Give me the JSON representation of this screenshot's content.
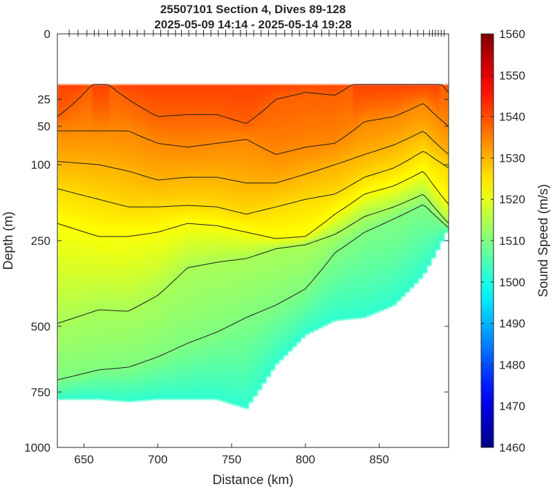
{
  "chart_data": {
    "type": "heatmap",
    "title": "25507101 Section 4, Dives 89-128",
    "subtitle": "2025-05-09 14:14 - 2025-05-14 19:28",
    "xlabel": "Distance (km)",
    "ylabel": "Depth (m)",
    "xlim": [
      632,
      897
    ],
    "ylim": [
      0,
      1000
    ],
    "y_scale": "sqrt",
    "x_ticks": [
      650,
      700,
      750,
      800,
      850
    ],
    "x_tick_labels": [
      "650",
      "700",
      "750",
      "800",
      "850"
    ],
    "y_ticks": [
      0,
      25,
      50,
      100,
      250,
      500,
      750,
      1000
    ],
    "y_tick_labels": [
      "0",
      "25",
      "50",
      "100",
      "250",
      "500",
      "750",
      "1000"
    ],
    "colorbar": {
      "label": "Sound Speed (m/s)",
      "min": 1460,
      "max": 1560,
      "ticks": [
        1460,
        1470,
        1480,
        1490,
        1500,
        1510,
        1520,
        1530,
        1540,
        1550,
        1560
      ],
      "tick_labels": [
        "1460",
        "1470",
        "1480",
        "1490",
        "1500",
        "1510",
        "1520",
        "1530",
        "1540",
        "1550",
        "1560"
      ],
      "colormap": "jet"
    },
    "dive_positions": [
      640,
      646,
      652,
      657,
      660,
      666,
      671,
      676,
      681,
      686,
      691,
      697,
      702,
      707,
      712,
      716,
      721,
      726,
      731,
      736,
      741,
      746,
      751,
      756,
      760,
      765,
      770,
      775,
      780,
      786,
      791,
      796,
      801,
      806,
      811,
      816,
      821,
      826,
      831,
      836,
      841,
      846,
      851,
      856,
      861,
      866,
      871,
      876,
      880,
      884,
      886,
      888,
      890,
      892,
      894
    ],
    "profiles": [
      {
        "x": 632,
        "bottom": 780,
        "iso": {
          "1538": 40,
          "1534": 55,
          "1530": 95,
          "1526": 140,
          "1522": 210,
          "1514": 490,
          "1510": 700
        }
      },
      {
        "x": 660,
        "bottom": 780,
        "iso": {
          "1538": 10,
          "1534": 55,
          "1530": 100,
          "1526": 160,
          "1522": 240,
          "1514": 445,
          "1510": 660
        }
      },
      {
        "x": 680,
        "bottom": 790,
        "iso": {
          "1538": 25,
          "1534": 55,
          "1530": 110,
          "1526": 175,
          "1522": 240,
          "1514": 450,
          "1510": 650
        }
      },
      {
        "x": 700,
        "bottom": 780,
        "iso": {
          "1538": 40,
          "1534": 70,
          "1530": 125,
          "1526": 175,
          "1522": 230,
          "1514": 400,
          "1510": 610
        }
      },
      {
        "x": 720,
        "bottom": 780,
        "iso": {
          "1538": 38,
          "1534": 75,
          "1530": 120,
          "1526": 172,
          "1522": 210,
          "1514": 320,
          "1510": 560
        }
      },
      {
        "x": 740,
        "bottom": 780,
        "iso": {
          "1538": 38,
          "1534": 70,
          "1530": 120,
          "1526": 175,
          "1522": 215,
          "1514": 305,
          "1510": 520
        }
      },
      {
        "x": 760,
        "bottom": 820,
        "iso": {
          "1538": 47,
          "1534": 65,
          "1530": 130,
          "1526": 190,
          "1522": 230,
          "1514": 295,
          "1510": 470
        }
      },
      {
        "x": 780,
        "bottom": 640,
        "iso": {
          "1538": 25,
          "1534": 85,
          "1530": 130,
          "1526": 175,
          "1522": 245,
          "1514": 270,
          "1510": 430
        }
      },
      {
        "x": 800,
        "bottom": 530,
        "iso": {
          "1538": 20,
          "1534": 75,
          "1530": 115,
          "1526": 160,
          "1522": 240,
          "1514": 260,
          "1510": 380
        }
      },
      {
        "x": 820,
        "bottom": 480,
        "iso": {
          "1538": 22,
          "1534": 70,
          "1530": 100,
          "1526": 150,
          "1522": 190,
          "1514": 235,
          "1510": 280
        }
      },
      {
        "x": 840,
        "bottom": 470,
        "iso": {
          "1538": 10,
          "1534": 45,
          "1530": 85,
          "1526": 120,
          "1522": 150,
          "1514": 195,
          "1510": 230
        }
      },
      {
        "x": 860,
        "bottom": 430,
        "iso": {
          "1538": 5,
          "1534": 40,
          "1530": 72,
          "1526": 105,
          "1522": 135,
          "1514": 175,
          "1510": 200
        }
      },
      {
        "x": 880,
        "bottom": 340,
        "iso": {
          "1538": 2,
          "1534": 28,
          "1530": 55,
          "1526": 80,
          "1522": 110,
          "1514": 150,
          "1510": 170
        }
      },
      {
        "x": 897,
        "bottom": 220,
        "iso": {
          "1538": 20,
          "1534": 50,
          "1530": 85,
          "1526": 105,
          "1522": 170,
          "1514": 210,
          "1510": 220
        }
      }
    ],
    "contour_levels": [
      1538,
      1534,
      1530,
      1526,
      1522,
      1514,
      1510
    ]
  }
}
